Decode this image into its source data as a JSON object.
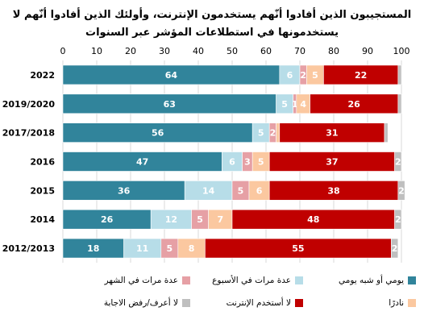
{
  "title": "المستجيبون الذين أفادوا أنّهم يستخدمون الإنترنت، وأولئك الذين أفادوا أنّهم لا يستخدمونها في استطلاعات المؤشر عبر السنوات",
  "chart_data": {
    "type": "bar",
    "orientation": "horizontal",
    "stacked": true,
    "xlim": [
      0,
      100
    ],
    "xticks": [
      "0",
      "10",
      "20",
      "30",
      "40",
      "50",
      "60",
      "70",
      "80",
      "90",
      "100"
    ],
    "grid": true,
    "legend_position": "bottom",
    "categories": [
      "2022",
      "2019/2020",
      "2017/2018",
      "2016",
      "2015",
      "2014",
      "2012/2013"
    ],
    "series": [
      {
        "name": "يومي أو شبه يومي",
        "color": "#31849b",
        "label_color": "#ffffff",
        "values": [
          64,
          63,
          56,
          47,
          36,
          26,
          18
        ]
      },
      {
        "name": "عدة مرات في الأسبوع",
        "color": "#b7dde8",
        "label_color": "#ffffff",
        "values": [
          6,
          5,
          5,
          6,
          14,
          12,
          11
        ]
      },
      {
        "name": "عدة مرات في الشهر",
        "color": "#e6a0a5",
        "label_color": "#ffffff",
        "values": [
          2,
          1,
          2,
          3,
          5,
          5,
          5
        ]
      },
      {
        "name": "نادرًا",
        "color": "#fbc8a0",
        "label_color": "#ffffff",
        "values": [
          5,
          4,
          1,
          5,
          6,
          7,
          8
        ]
      },
      {
        "name": "لا أستخدم الإنترنت",
        "color": "#c00000",
        "label_color": "#ffffff",
        "values": [
          22,
          26,
          31,
          37,
          38,
          48,
          55
        ]
      },
      {
        "name": "لا أعرف/رفض الاجابة",
        "color": "#bfbfbf",
        "label_color": "#ffffff",
        "values": [
          1,
          1,
          1,
          2,
          2,
          2,
          2
        ]
      }
    ],
    "visible_labels": [
      [
        "64",
        "6",
        "2",
        "5",
        "22",
        ""
      ],
      [
        "63",
        "5",
        "1",
        "4",
        "26",
        ""
      ],
      [
        "56",
        "5",
        "2",
        "",
        "31",
        ""
      ],
      [
        "47",
        "6",
        "3",
        "5",
        "37",
        "2"
      ],
      [
        "36",
        "14",
        "5",
        "6",
        "38",
        "2"
      ],
      [
        "26",
        "12",
        "5",
        "7",
        "48",
        "2"
      ],
      [
        "18",
        "11",
        "5",
        "8",
        "55",
        "2"
      ]
    ]
  }
}
